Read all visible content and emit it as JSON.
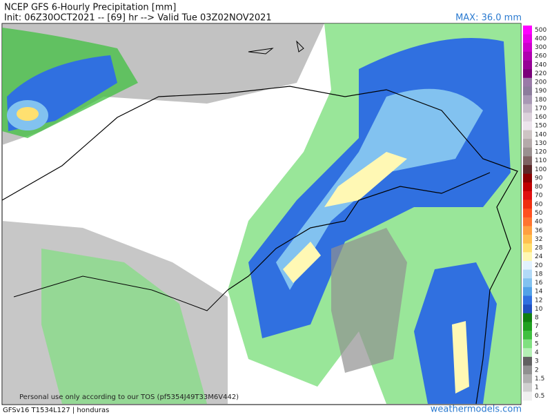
{
  "header": {
    "title": "NCEP GFS 6-Hourly Precipitation [mm]",
    "subtitle": "Init: 06Z30OCT2021 -- [69] hr --> Valid Tue 03Z02NOV2021",
    "max": "MAX: 36.0 mm"
  },
  "colorbar": {
    "entries": [
      {
        "label": "500",
        "color": "#ff00ff"
      },
      {
        "label": "400",
        "color": "#e600e6"
      },
      {
        "label": "300",
        "color": "#cc00cc"
      },
      {
        "label": "260",
        "color": "#b000b0"
      },
      {
        "label": "240",
        "color": "#960096"
      },
      {
        "label": "220",
        "color": "#7a007a"
      },
      {
        "label": "200",
        "color": "#9a7aa8"
      },
      {
        "label": "190",
        "color": "#8c7c9c"
      },
      {
        "label": "180",
        "color": "#a898b4"
      },
      {
        "label": "170",
        "color": "#c4b8c8"
      },
      {
        "label": "160",
        "color": "#dcd2dc"
      },
      {
        "label": "150",
        "color": "#ece4ec"
      },
      {
        "label": "140",
        "color": "#cdc4c4"
      },
      {
        "label": "130",
        "color": "#b4aaaa"
      },
      {
        "label": "120",
        "color": "#9a9090"
      },
      {
        "label": "110",
        "color": "#7e6262"
      },
      {
        "label": "100",
        "color": "#5c2828"
      },
      {
        "label": "90",
        "color": "#8c0000"
      },
      {
        "label": "80",
        "color": "#c00000"
      },
      {
        "label": "70",
        "color": "#e01010"
      },
      {
        "label": "60",
        "color": "#f03010"
      },
      {
        "label": "50",
        "color": "#ff5020"
      },
      {
        "label": "40",
        "color": "#ff7430"
      },
      {
        "label": "36",
        "color": "#ffa040"
      },
      {
        "label": "32",
        "color": "#ffc050"
      },
      {
        "label": "28",
        "color": "#ffe070"
      },
      {
        "label": "24",
        "color": "#fff8b4"
      },
      {
        "label": "20",
        "color": "#e2f2ff"
      },
      {
        "label": "18",
        "color": "#b2daf8"
      },
      {
        "label": "16",
        "color": "#82c2f0"
      },
      {
        "label": "14",
        "color": "#52a2e8"
      },
      {
        "label": "12",
        "color": "#3070e0"
      },
      {
        "label": "10",
        "color": "#2050c0"
      },
      {
        "label": "8",
        "color": "#108010"
      },
      {
        "label": "7",
        "color": "#20a020"
      },
      {
        "label": "6",
        "color": "#40c040"
      },
      {
        "label": "5",
        "color": "#80e080"
      },
      {
        "label": "4",
        "color": "#b4f0b4"
      },
      {
        "label": "3",
        "color": "#606060"
      },
      {
        "label": "2",
        "color": "#909090"
      },
      {
        "label": "1.5",
        "color": "#b0b0b0"
      },
      {
        "label": "1",
        "color": "#d0d0d0"
      },
      {
        "label": "0.5",
        "color": "#f0f0f0"
      }
    ]
  },
  "footer": {
    "notice": "Personal use only according to our TOS (pf5354J49T33M6V442)",
    "model": "GFSv16 T1534L127 | honduras",
    "site": "weathermodels.com"
  }
}
